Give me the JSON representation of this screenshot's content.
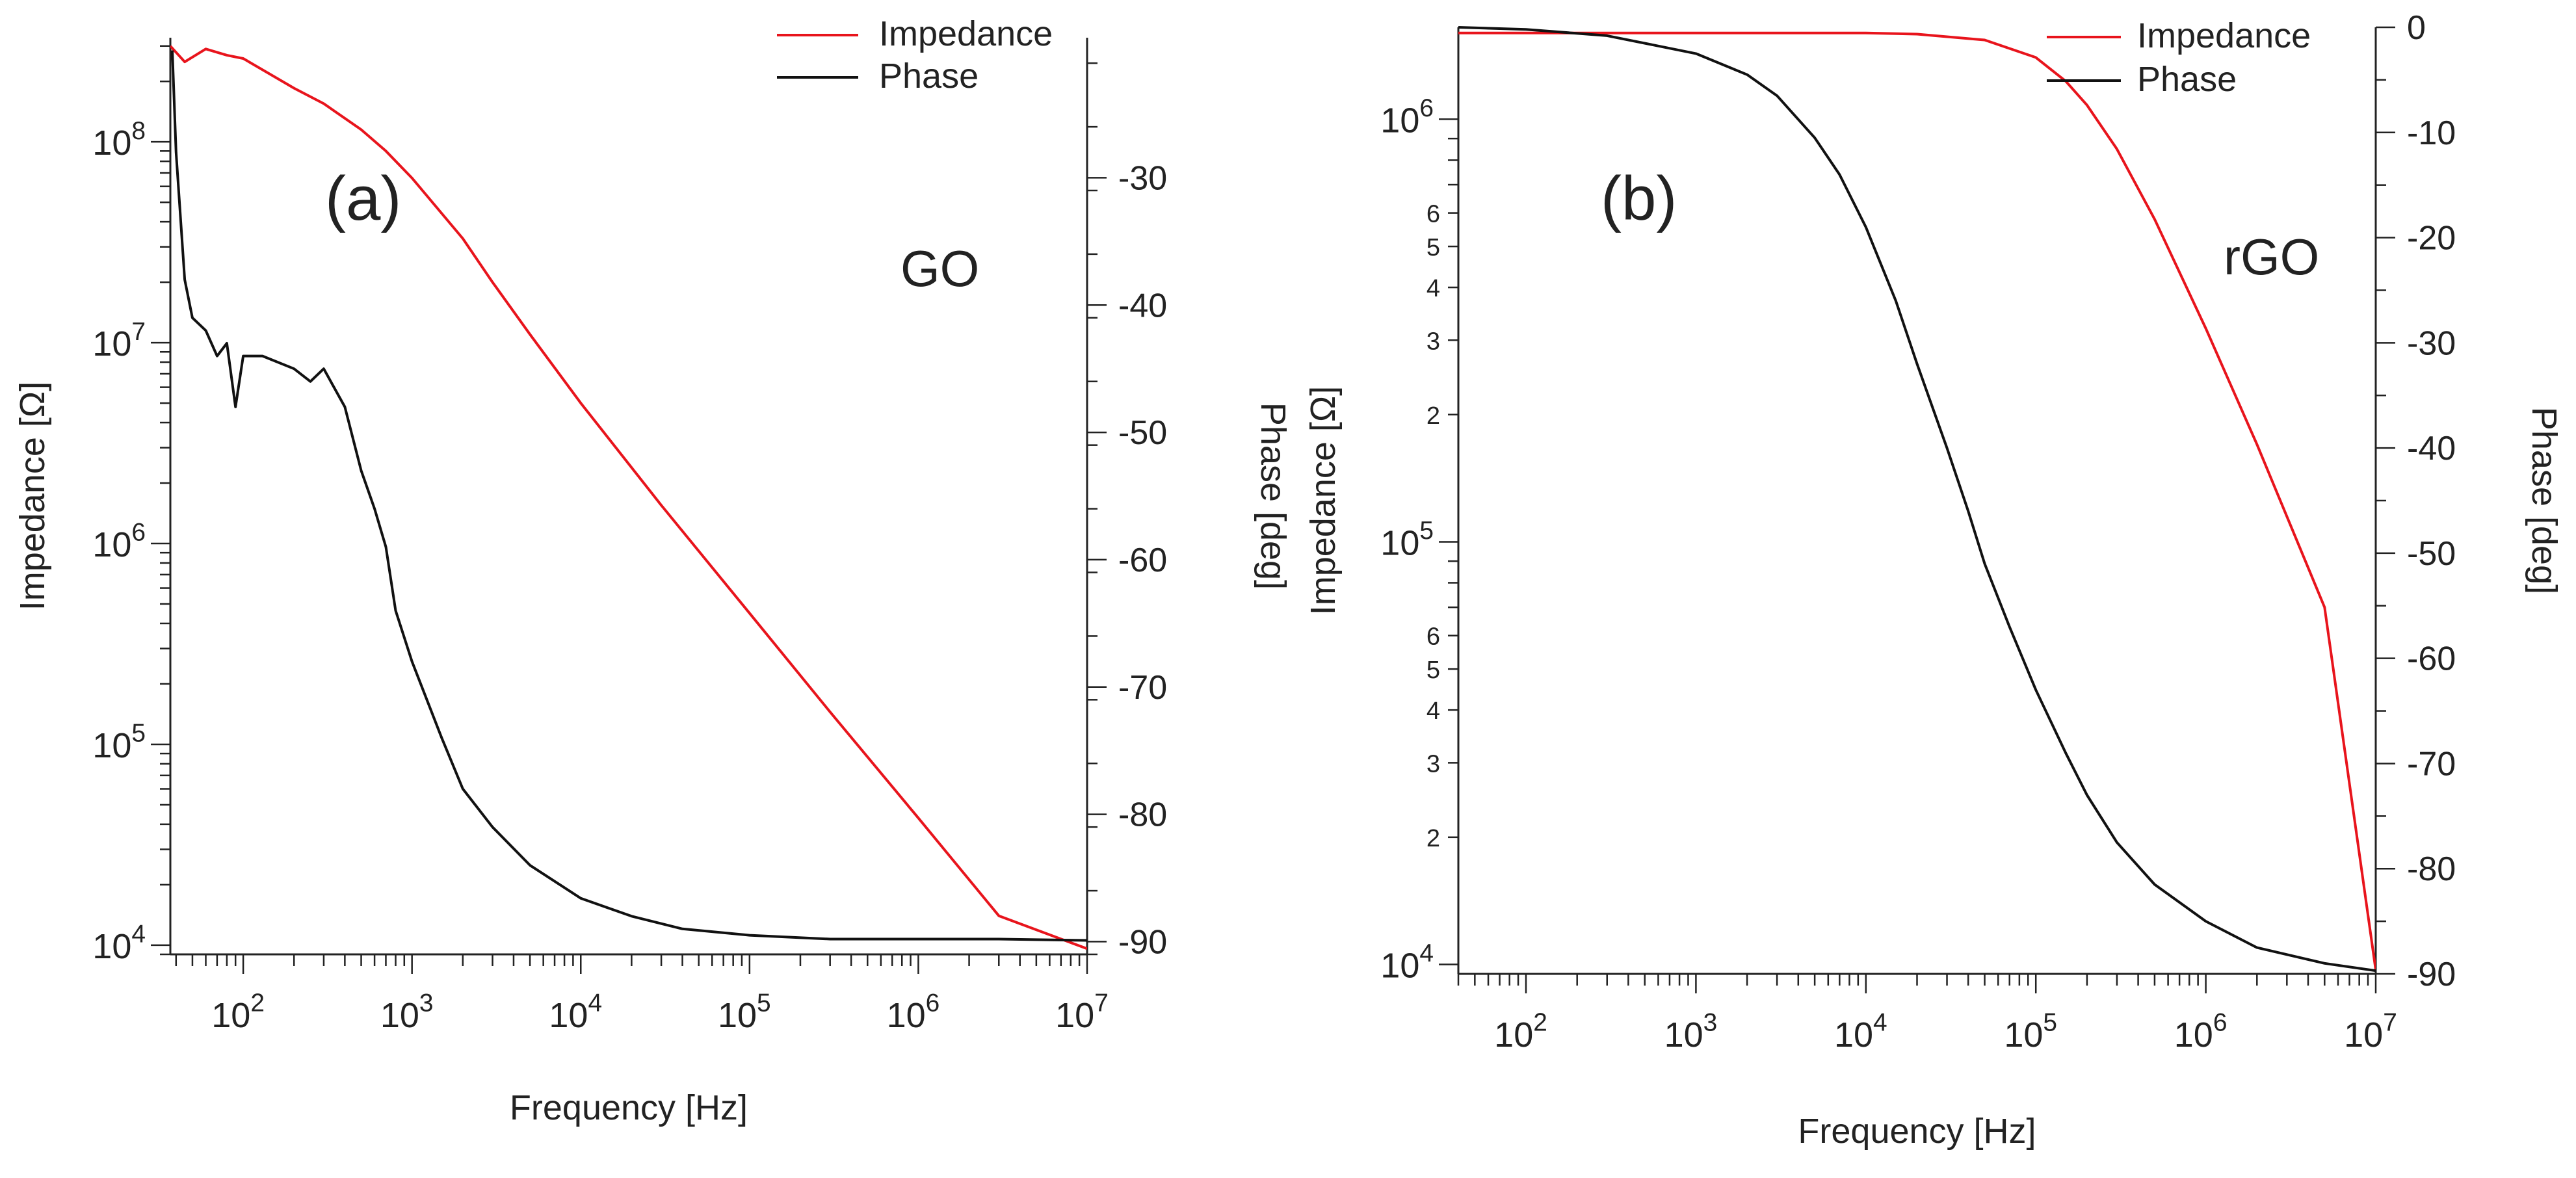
{
  "chart_data": [
    {
      "type": "line",
      "panel_label": "(a)",
      "sample_label": "GO",
      "xlabel": "Frequency [Hz]",
      "ylabel": "Impedance [Ω]",
      "y2label": "Phase [deg]",
      "x_scale": "log",
      "y_scale": "log",
      "xlim": [
        37,
        10000000
      ],
      "ylim": [
        9000,
        330000000
      ],
      "y2lim": [
        -91,
        -19
      ],
      "x_ticks": [
        {
          "v": 100,
          "label": "10",
          "exp": "2"
        },
        {
          "v": 1000,
          "label": "10",
          "exp": "3"
        },
        {
          "v": 10000,
          "label": "10",
          "exp": "4"
        },
        {
          "v": 100000,
          "label": "10",
          "exp": "5"
        },
        {
          "v": 1000000,
          "label": "10",
          "exp": "6"
        },
        {
          "v": 10000000,
          "label": "10",
          "exp": "7"
        }
      ],
      "y_ticks": [
        {
          "v": 10000,
          "label": "10",
          "exp": "4"
        },
        {
          "v": 100000,
          "label": "10",
          "exp": "5"
        },
        {
          "v": 1000000,
          "label": "10",
          "exp": "6"
        },
        {
          "v": 10000000,
          "label": "10",
          "exp": "7"
        },
        {
          "v": 100000000,
          "label": "10",
          "exp": "8"
        }
      ],
      "y_minor_ticks": [],
      "y2_ticks": [
        {
          "v": -30,
          "label": "-30"
        },
        {
          "v": -40,
          "label": "-40"
        },
        {
          "v": -50,
          "label": "-50"
        },
        {
          "v": -60,
          "label": "-60"
        },
        {
          "v": -70,
          "label": "-70"
        },
        {
          "v": -80,
          "label": "-80"
        },
        {
          "v": -90,
          "label": "-90"
        }
      ],
      "legend": {
        "position": "top-right",
        "entries": [
          {
            "name": "Impedance",
            "color": "#e8141c"
          },
          {
            "name": "Phase",
            "color": "#111111"
          }
        ]
      },
      "series": [
        {
          "name": "Impedance",
          "axis": "left",
          "color": "#e8141c",
          "x": [
            37,
            45,
            60,
            80,
            100,
            200,
            300,
            500,
            700,
            1000,
            2000,
            3000,
            5000,
            10000,
            30000,
            100000,
            300000,
            1000000,
            3000000,
            10000000
          ],
          "y": [
            300000000,
            250000000,
            290000000,
            270000000,
            260000000,
            185000000,
            155000000,
            115000000,
            90000000,
            66000000,
            33000000,
            20000000,
            11000000,
            5000000,
            1550000,
            450000,
            145000,
            43000,
            14000,
            9600
          ]
        },
        {
          "name": "Phase",
          "axis": "right",
          "color": "#111111",
          "x": [
            38,
            40,
            45,
            50,
            60,
            70,
            80,
            90,
            100,
            130,
            200,
            250,
            300,
            400,
            500,
            600,
            700,
            800,
            1000,
            1500,
            2000,
            3000,
            5000,
            10000,
            20000,
            40000,
            100000,
            300000,
            1000000,
            3000000,
            10000000
          ],
          "y": [
            -20,
            -28,
            -38,
            -41,
            -42,
            -44,
            -43,
            -48,
            -44,
            -44,
            -45,
            -46,
            -45,
            -48,
            -53,
            -56,
            -59,
            -64,
            -68,
            -74,
            -78,
            -81,
            -84,
            -86.6,
            -88,
            -89,
            -89.5,
            -89.8,
            -89.8,
            -89.8,
            -89.9
          ]
        }
      ]
    },
    {
      "type": "line",
      "panel_label": "(b)",
      "sample_label": "rGO",
      "xlabel": "Frequency [Hz]",
      "ylabel": "Impedance [Ω]",
      "y2label": "Phase [deg]",
      "x_scale": "log",
      "y_scale": "log",
      "xlim": [
        40,
        10000000
      ],
      "ylim": [
        9500,
        1650000
      ],
      "y2lim": [
        -90,
        0
      ],
      "x_ticks": [
        {
          "v": 100,
          "label": "10",
          "exp": "2"
        },
        {
          "v": 1000,
          "label": "10",
          "exp": "3"
        },
        {
          "v": 10000,
          "label": "10",
          "exp": "4"
        },
        {
          "v": 100000,
          "label": "10",
          "exp": "5"
        },
        {
          "v": 1000000,
          "label": "10",
          "exp": "6"
        },
        {
          "v": 10000000,
          "label": "10",
          "exp": "7"
        }
      ],
      "y_ticks": [
        {
          "v": 10000,
          "label": "10",
          "exp": "4"
        },
        {
          "v": 100000,
          "label": "10",
          "exp": "5"
        },
        {
          "v": 1000000,
          "label": "10",
          "exp": "6"
        }
      ],
      "y_minor_ticks": [
        {
          "v": 20000,
          "label": "2"
        },
        {
          "v": 30000,
          "label": "3"
        },
        {
          "v": 40000,
          "label": "4"
        },
        {
          "v": 50000,
          "label": "5"
        },
        {
          "v": 60000,
          "label": "6"
        },
        {
          "v": 200000,
          "label": "2"
        },
        {
          "v": 300000,
          "label": "3"
        },
        {
          "v": 400000,
          "label": "4"
        },
        {
          "v": 500000,
          "label": "5"
        },
        {
          "v": 600000,
          "label": "6"
        }
      ],
      "y2_ticks": [
        {
          "v": 0,
          "label": "0"
        },
        {
          "v": -10,
          "label": "-10"
        },
        {
          "v": -20,
          "label": "-20"
        },
        {
          "v": -30,
          "label": "-30"
        },
        {
          "v": -40,
          "label": "-40"
        },
        {
          "v": -50,
          "label": "-50"
        },
        {
          "v": -60,
          "label": "-60"
        },
        {
          "v": -70,
          "label": "-70"
        },
        {
          "v": -80,
          "label": "-80"
        },
        {
          "v": -90,
          "label": "-90"
        }
      ],
      "legend": {
        "position": "top-right",
        "entries": [
          {
            "name": "Impedance",
            "color": "#e8141c"
          },
          {
            "name": "Phase",
            "color": "#111111"
          }
        ]
      },
      "series": [
        {
          "name": "Impedance",
          "axis": "left",
          "color": "#e8141c",
          "x": [
            40,
            100,
            1000,
            10000,
            20000,
            50000,
            100000,
            150000,
            200000,
            300000,
            500000,
            1000000,
            2000000,
            5000000,
            10000000
          ],
          "y": [
            1600000,
            1600000,
            1600000,
            1600000,
            1590000,
            1540000,
            1400000,
            1230000,
            1080000,
            850000,
            580000,
            320000,
            170000,
            70000,
            9700
          ]
        },
        {
          "name": "Phase",
          "axis": "right",
          "color": "#111111",
          "x": [
            40,
            100,
            300,
            1000,
            2000,
            3000,
            5000,
            7000,
            10000,
            15000,
            20000,
            30000,
            40000,
            50000,
            70000,
            100000,
            150000,
            200000,
            300000,
            500000,
            1000000,
            2000000,
            5000000,
            10000000
          ],
          "y": [
            0,
            -0.2,
            -0.8,
            -2.5,
            -4.5,
            -6.5,
            -10.5,
            -14,
            -19,
            -26,
            -32,
            -40,
            -46,
            -51,
            -57,
            -63,
            -69,
            -73,
            -77.5,
            -81.5,
            -85,
            -87.5,
            -89,
            -89.7
          ]
        }
      ]
    }
  ]
}
